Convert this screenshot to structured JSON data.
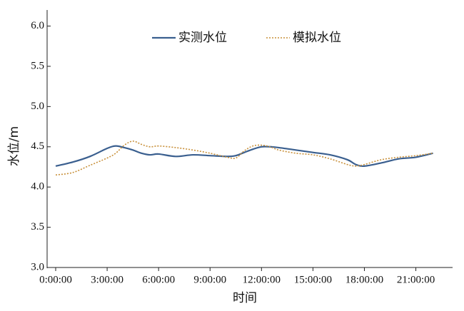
{
  "chart_data": {
    "type": "line",
    "x_label": "时间",
    "y_label": "水位/m",
    "x": [
      0,
      1,
      2,
      3,
      3.5,
      4,
      4.5,
      5,
      5.5,
      6,
      7,
      8,
      9,
      10,
      10.5,
      11,
      11.5,
      12,
      12.5,
      13,
      14,
      15,
      16,
      17,
      17.5,
      18,
      19,
      20,
      21,
      22
    ],
    "series": [
      {
        "name": "实测水位",
        "color": "#3a5f8f",
        "style": "solid",
        "values": [
          4.26,
          4.31,
          4.38,
          4.48,
          4.51,
          4.49,
          4.46,
          4.42,
          4.4,
          4.41,
          4.38,
          4.4,
          4.39,
          4.38,
          4.39,
          4.43,
          4.47,
          4.5,
          4.5,
          4.49,
          4.46,
          4.43,
          4.4,
          4.34,
          4.28,
          4.26,
          4.3,
          4.35,
          4.37,
          4.42
        ]
      },
      {
        "name": "模拟水位",
        "color": "#c8903a",
        "style": "dotted",
        "values": [
          4.15,
          4.18,
          4.27,
          4.36,
          4.42,
          4.52,
          4.57,
          4.53,
          4.5,
          4.51,
          4.49,
          4.46,
          4.42,
          4.37,
          4.36,
          4.45,
          4.51,
          4.52,
          4.5,
          4.46,
          4.42,
          4.4,
          4.35,
          4.28,
          4.26,
          4.28,
          4.34,
          4.37,
          4.39,
          4.42
        ]
      }
    ],
    "xlim": [
      -0.5,
      23.1
    ],
    "ylim": [
      3,
      6.2
    ],
    "xticks": [
      {
        "value": 0,
        "label": "0:00:00"
      },
      {
        "value": 3,
        "label": "3:00:00"
      },
      {
        "value": 6,
        "label": "6:00:00"
      },
      {
        "value": 9,
        "label": "9:00:00"
      },
      {
        "value": 12,
        "label": "12:00:00"
      },
      {
        "value": 15,
        "label": "15:00:00"
      },
      {
        "value": 18,
        "label": "18:00:00"
      },
      {
        "value": 21,
        "label": "21:00:00"
      }
    ],
    "yticks": [
      {
        "value": 3,
        "label": "3.0"
      },
      {
        "value": 3.5,
        "label": "3.5"
      },
      {
        "value": 4,
        "label": "4.0"
      },
      {
        "value": 4.5,
        "label": "4.5"
      },
      {
        "value": 5,
        "label": "5.0"
      },
      {
        "value": 5.5,
        "label": "5.5"
      },
      {
        "value": 6,
        "label": "6.0"
      }
    ],
    "legend": "top"
  }
}
